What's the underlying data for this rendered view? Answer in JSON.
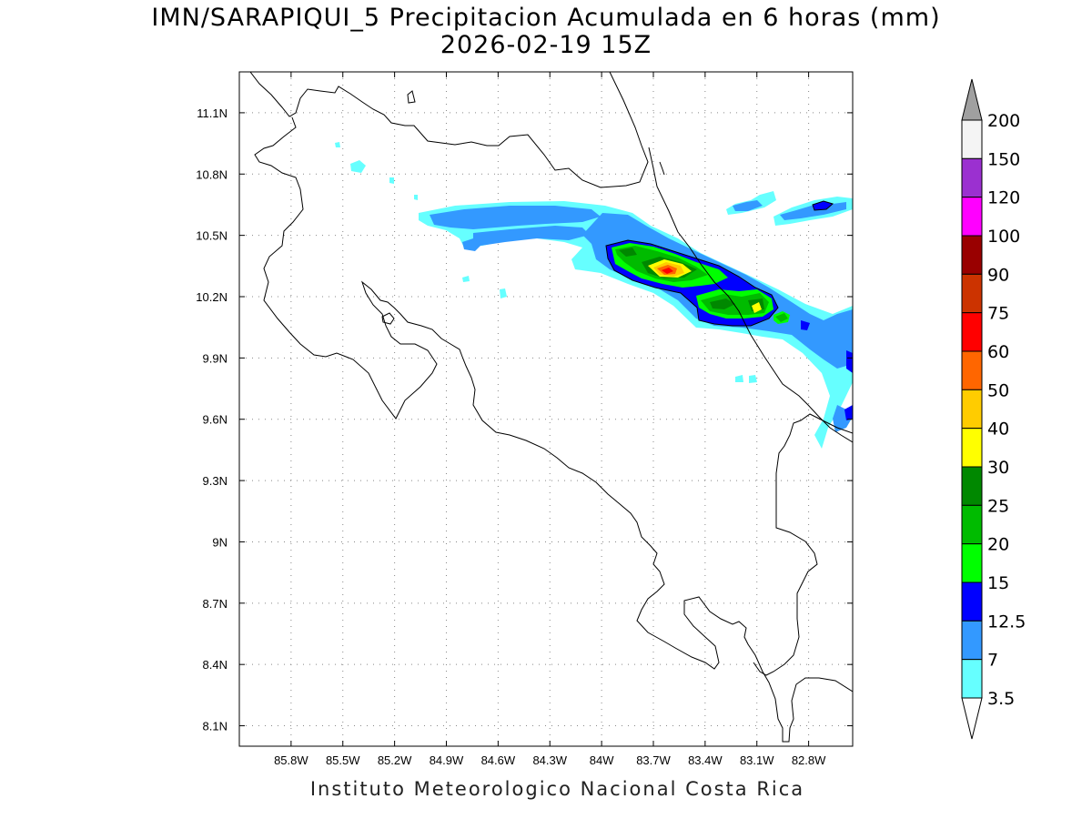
{
  "header": {
    "title": "IMN/SARAPIQUI_5 Precipitacion Acumulada en 6 horas (mm)",
    "subtitle": "2026-02-19 15Z"
  },
  "footer": {
    "credit": "Instituto Meteorologico Nacional Costa Rica"
  },
  "map": {
    "lon_range": [
      -86.1,
      -82.55
    ],
    "lat_range": [
      8.0,
      11.3
    ],
    "lon_ticks": [
      "85.8W",
      "85.5W",
      "85.2W",
      "84.9W",
      "84.6W",
      "84.3W",
      "84W",
      "83.7W",
      "83.4W",
      "83.1W",
      "82.8W"
    ],
    "lat_ticks": [
      "11.1N",
      "10.8N",
      "10.5N",
      "10.2N",
      "9.9N",
      "9.6N",
      "9.3N",
      "9N",
      "8.7N",
      "8.4N",
      "8.1N"
    ],
    "grid": "dotted"
  },
  "colorbar": {
    "labels": [
      "200",
      "150",
      "120",
      "100",
      "90",
      "75",
      "60",
      "50",
      "40",
      "30",
      "25",
      "20",
      "15",
      "12.5",
      "7",
      "3.5"
    ],
    "colors": [
      "#f4f4f4",
      "#9b30d0",
      "#ff00ff",
      "#990000",
      "#cc3300",
      "#ff0000",
      "#ff6600",
      "#ffcc00",
      "#ffff00",
      "#008800",
      "#00bb00",
      "#00ff00",
      "#0000ff",
      "#3399ff",
      "#66ffff"
    ],
    "top_arrow_color": "#a0a0a0",
    "bottom_arrow_color": "#ffffff"
  },
  "precip_colors": {
    "c3_5": "#66ffff",
    "c7": "#3399ff",
    "c12_5": "#0000ff",
    "c15": "#00ff00",
    "c20": "#00bb00",
    "c25": "#008800",
    "c30": "#ffff00",
    "c40": "#ffcc00",
    "c50": "#ff6600",
    "c60": "#ff0000"
  }
}
